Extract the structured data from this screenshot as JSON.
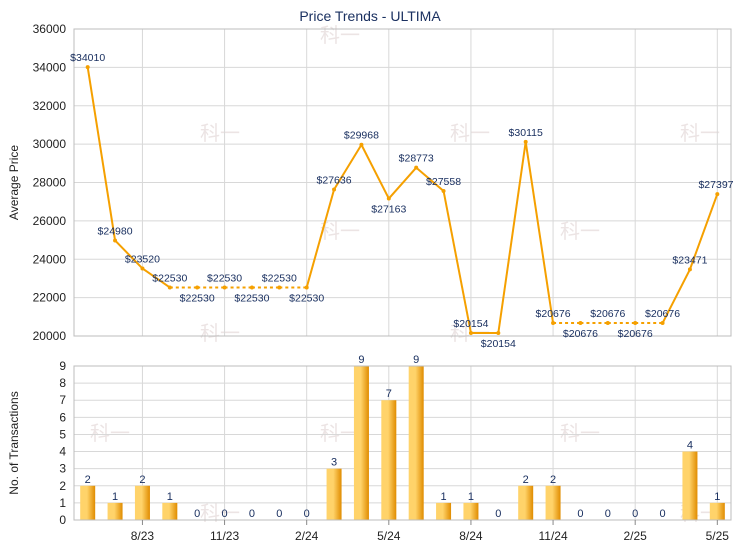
{
  "chart_data": {
    "title": "Price Trends - ULTIMA",
    "colors": {
      "line": "#f5a000",
      "bar_light": "#ffd36a",
      "bar_dark": "#e08c00",
      "grid": "#d8d8d8",
      "label": "#1a3060",
      "axis_text": "#222222",
      "watermark": "#ece4e4"
    },
    "watermark_text": "科一",
    "price_chart": {
      "type": "line",
      "ylabel": "Average Price",
      "ylim": [
        20000,
        36000
      ],
      "yticks": [
        "20000",
        "22000",
        "24000",
        "26000",
        "28000",
        "30000",
        "32000",
        "34000",
        "36000"
      ],
      "points": [
        {
          "value": 34010,
          "label": "$34010",
          "dashed_after": false
        },
        {
          "value": 24980,
          "label": "$24980",
          "dashed_after": false
        },
        {
          "value": 23520,
          "label": "$23520",
          "dashed_after": false
        },
        {
          "value": 22530,
          "label": "$22530",
          "dashed_after": true
        },
        {
          "value": 22530,
          "label": "$22530",
          "dashed_after": true
        },
        {
          "value": 22530,
          "label": "$22530",
          "dashed_after": true
        },
        {
          "value": 22530,
          "label": "$22530",
          "dashed_after": true
        },
        {
          "value": 22530,
          "label": "$22530",
          "dashed_after": true
        },
        {
          "value": 22530,
          "label": "$22530",
          "dashed_after": false
        },
        {
          "value": 27636,
          "label": "$27636",
          "dashed_after": false
        },
        {
          "value": 29968,
          "label": "$29968",
          "dashed_after": false
        },
        {
          "value": 27163,
          "label": "$27163",
          "dashed_after": false
        },
        {
          "value": 28773,
          "label": "$28773",
          "dashed_after": false
        },
        {
          "value": 27558,
          "label": "$27558",
          "dashed_after": false
        },
        {
          "value": 20154,
          "label": "$20154",
          "dashed_after": false
        },
        {
          "value": 20154,
          "label": "$20154",
          "dashed_after": false
        },
        {
          "value": 30115,
          "label": "$30115",
          "dashed_after": false
        },
        {
          "value": 20676,
          "label": "$20676",
          "dashed_after": true
        },
        {
          "value": 20676,
          "label": "$20676",
          "dashed_after": true
        },
        {
          "value": 20676,
          "label": "$20676",
          "dashed_after": true
        },
        {
          "value": 20676,
          "label": "$20676",
          "dashed_after": true
        },
        {
          "value": 20676,
          "label": "$20676",
          "dashed_after": false
        },
        {
          "value": 23471,
          "label": "$23471",
          "dashed_after": false
        },
        {
          "value": 27397,
          "label": "$27397",
          "dashed_after": false
        }
      ]
    },
    "transactions_chart": {
      "type": "bar",
      "ylabel": "No. of Transactions",
      "ylim": [
        0,
        9
      ],
      "yticks": [
        "0",
        "1",
        "2",
        "3",
        "4",
        "5",
        "6",
        "7",
        "8",
        "9"
      ],
      "values": [
        2,
        1,
        2,
        1,
        0,
        0,
        0,
        0,
        0,
        3,
        9,
        7,
        9,
        1,
        1,
        0,
        2,
        2,
        0,
        0,
        0,
        0,
        4,
        1
      ],
      "value_labels": [
        "2",
        "1",
        "2",
        "1",
        "0",
        "0",
        "0",
        "0",
        "0",
        "3",
        "9",
        "7",
        "9",
        "1",
        "1",
        "0",
        "2",
        "2",
        "0",
        "0",
        "0",
        "0",
        "4",
        "1"
      ]
    },
    "x_tick_labels": [
      {
        "label": "8/23",
        "index": 2
      },
      {
        "label": "11/23",
        "index": 5
      },
      {
        "label": "2/24",
        "index": 8
      },
      {
        "label": "5/24",
        "index": 11
      },
      {
        "label": "8/24",
        "index": 14
      },
      {
        "label": "11/24",
        "index": 17
      },
      {
        "label": "2/25",
        "index": 20
      },
      {
        "label": "5/25",
        "index": 23
      }
    ]
  }
}
